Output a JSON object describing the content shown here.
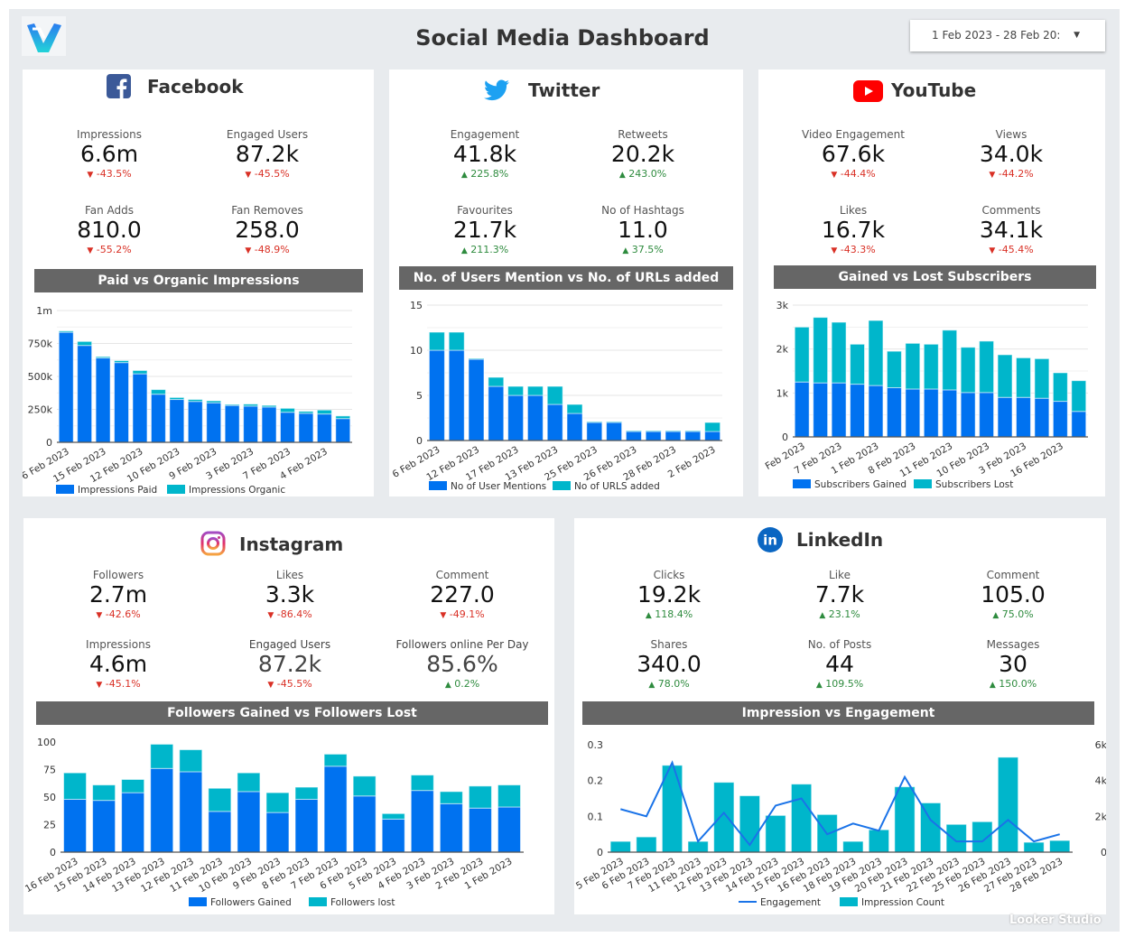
{
  "header": {
    "title": "Social Media Dashboard",
    "date_range": "1 Feb 2023 - 28 Feb 20:",
    "watermark": "Looker Studio"
  },
  "colors": {
    "primary": "#0072f0",
    "secondary": "#00b6cb",
    "down": "#d93025",
    "up": "#2e8b3e",
    "chart_header": "#666666"
  },
  "facebook": {
    "name": "Facebook",
    "icon": "facebook-icon",
    "kpis": [
      {
        "label": "Impressions",
        "value": "6.6m",
        "delta": "-43.5%",
        "trend": "down"
      },
      {
        "label": "Engaged Users",
        "value": "87.2k",
        "delta": "-45.5%",
        "trend": "down"
      },
      {
        "label": "Fan Adds",
        "value": "810.0",
        "delta": "-55.2%",
        "trend": "down"
      },
      {
        "label": "Fan Removes",
        "value": "258.0",
        "delta": "-48.9%",
        "trend": "down"
      }
    ],
    "chart_title": "Paid vs Organic Impressions"
  },
  "twitter": {
    "name": "Twitter",
    "icon": "twitter-bird-icon",
    "kpis": [
      {
        "label": "Engagement",
        "value": "41.8k",
        "delta": "225.8%",
        "trend": "up"
      },
      {
        "label": "Retweets",
        "value": "20.2k",
        "delta": "243.0%",
        "trend": "up"
      },
      {
        "label": "Favourites",
        "value": "21.7k",
        "delta": "211.3%",
        "trend": "up"
      },
      {
        "label": "No of Hashtags",
        "value": "11.0",
        "delta": "37.5%",
        "trend": "up"
      }
    ],
    "chart_title": "No. of Users Mention vs No. of URLs added"
  },
  "youtube": {
    "name": "YouTube",
    "icon": "youtube-play-icon",
    "kpis": [
      {
        "label": "Video Engagement",
        "value": "67.6k",
        "delta": "-44.4%",
        "trend": "down"
      },
      {
        "label": "Views",
        "value": "34.0k",
        "delta": "-44.2%",
        "trend": "down"
      },
      {
        "label": "Likes",
        "value": "16.7k",
        "delta": "-43.3%",
        "trend": "down"
      },
      {
        "label": "Comments",
        "value": "34.1k",
        "delta": "-45.4%",
        "trend": "down"
      }
    ],
    "chart_title": "Gained vs Lost Subscribers"
  },
  "instagram": {
    "name": "Instagram",
    "icon": "instagram-icon",
    "kpis": [
      {
        "label": "Followers",
        "value": "2.7m",
        "delta": "-42.6%",
        "trend": "down"
      },
      {
        "label": "Likes",
        "value": "3.3k",
        "delta": "-86.4%",
        "trend": "down"
      },
      {
        "label": "Comment",
        "value": "227.0",
        "delta": "-49.1%",
        "trend": "down"
      },
      {
        "label": "Impressions",
        "value": "4.6m",
        "delta": "-45.1%",
        "trend": "down"
      },
      {
        "label": "Engaged Users",
        "value": "87.2k",
        "delta": "-45.5%",
        "trend": "down"
      },
      {
        "label": "Followers online Per Day",
        "value": "85.6%",
        "delta": "0.2%",
        "trend": "up"
      }
    ],
    "chart_title": "Followers Gained vs Followers Lost"
  },
  "linkedin": {
    "name": "LinkedIn",
    "icon": "linkedin-icon",
    "kpis": [
      {
        "label": "Clicks",
        "value": "19.2k",
        "delta": "118.4%",
        "trend": "up"
      },
      {
        "label": "Like",
        "value": "7.7k",
        "delta": "23.1%",
        "trend": "up"
      },
      {
        "label": "Comment",
        "value": "105.0",
        "delta": "75.0%",
        "trend": "up"
      },
      {
        "label": "Shares",
        "value": "340.0",
        "delta": "78.0%",
        "trend": "up"
      },
      {
        "label": "No. of Posts",
        "value": "44",
        "delta": "109.5%",
        "trend": "up"
      },
      {
        "label": "Messages",
        "value": "30",
        "delta": "150.0%",
        "trend": "up"
      }
    ],
    "chart_title": "Impression vs Engagement"
  },
  "chart_data": [
    {
      "type": "bar",
      "stacked": true,
      "title": "Paid vs Organic Impressions",
      "grid": true,
      "legend": "bottom",
      "categories": [
        "6 Feb 2023",
        "",
        "15 Feb 2023",
        "",
        "12 Feb 2023",
        "",
        "10 Feb 2023",
        "",
        "9 Feb 2023",
        "",
        "3 Feb 2023",
        "",
        "7 Feb 2023",
        "",
        "4 Feb 2023",
        ""
      ],
      "y_axis": {
        "min": 0,
        "max": 1000000,
        "ticks": [
          {
            "value": 0,
            "label": "0"
          },
          {
            "value": 250000,
            "label": "250k"
          },
          {
            "value": 500000,
            "label": "500k"
          },
          {
            "value": 750000,
            "label": "750k"
          },
          {
            "value": 1000000,
            "label": "1m"
          }
        ]
      },
      "series": [
        {
          "name": "Impressions Paid",
          "type": "bar",
          "color": "#0072f0",
          "values": [
            835000,
            735000,
            640000,
            605000,
            520000,
            365000,
            325000,
            310000,
            300000,
            280000,
            275000,
            268000,
            228000,
            220000,
            215000,
            180000
          ]
        },
        {
          "name": "Impressions Organic",
          "type": "bar",
          "color": "#00b6cb",
          "values": [
            10000,
            30000,
            10000,
            15000,
            25000,
            35000,
            15000,
            15000,
            15000,
            8000,
            15000,
            12000,
            30000,
            15000,
            30000,
            20000
          ]
        }
      ]
    },
    {
      "type": "bar",
      "stacked": true,
      "title": "No. of Users Mention vs No. of URLs added",
      "grid": true,
      "legend": "bottom",
      "categories": [
        "6 Feb 2023",
        "",
        "12 Feb 2023",
        "",
        "17 Feb 2023",
        "",
        "13 Feb 2023",
        "",
        "25 Feb 2023",
        "",
        "26 Feb 2023",
        "",
        "28 Feb 2023",
        "",
        "2 Feb 2023"
      ],
      "y_axis": {
        "min": 0,
        "max": 15,
        "ticks": [
          {
            "value": 0,
            "label": "0"
          },
          {
            "value": 5,
            "label": "5"
          },
          {
            "value": 10,
            "label": "10"
          },
          {
            "value": 15,
            "label": "15"
          }
        ]
      },
      "series": [
        {
          "name": "No of User Mentions",
          "type": "bar",
          "color": "#0072f0",
          "values": [
            10,
            10,
            9,
            6,
            5,
            5,
            4,
            3,
            2,
            2,
            1,
            1,
            1,
            1,
            1
          ]
        },
        {
          "name": "No of URLS added",
          "type": "bar",
          "color": "#00b6cb",
          "values": [
            2,
            2,
            0.1,
            1,
            1,
            1,
            2,
            1,
            0.1,
            0.1,
            0.1,
            0.1,
            0.1,
            0.1,
            1
          ]
        }
      ]
    },
    {
      "type": "bar",
      "stacked": true,
      "title": "Gained vs Lost Subscribers",
      "grid": true,
      "legend": "bottom",
      "categories": [
        "Feb 2023",
        "",
        "7 Feb 2023",
        "",
        "1 Feb 2023",
        "",
        "8 Feb 2023",
        "",
        "11 Feb 2023",
        "",
        "10 Feb 2023",
        "",
        "3 Feb 2023",
        "",
        "16 Feb 2023",
        ""
      ],
      "y_axis": {
        "min": 0,
        "max": 3000,
        "ticks": [
          {
            "value": 0,
            "label": "0"
          },
          {
            "value": 1000,
            "label": "1k"
          },
          {
            "value": 2000,
            "label": "2k"
          },
          {
            "value": 3000,
            "label": "3k"
          }
        ]
      },
      "series": [
        {
          "name": "Subscribers Gained",
          "type": "bar",
          "color": "#0072f0",
          "values": [
            1250,
            1230,
            1230,
            1200,
            1170,
            1120,
            1090,
            1090,
            1070,
            1010,
            1010,
            900,
            900,
            880,
            810,
            580
          ]
        },
        {
          "name": "Subscribers Lost",
          "type": "bar",
          "color": "#00b6cb",
          "values": [
            1250,
            1490,
            1380,
            910,
            1480,
            830,
            1040,
            1020,
            1360,
            1030,
            1170,
            970,
            900,
            900,
            650,
            700
          ]
        }
      ]
    },
    {
      "type": "bar",
      "stacked": true,
      "title": "Followers Gained vs Followers Lost",
      "grid": false,
      "legend": "bottom",
      "categories": [
        "16 Feb 2023",
        "15 Feb 2023",
        "14 Feb 2023",
        "13 Feb 2023",
        "12 Feb 2023",
        "11 Feb 2023",
        "10 Feb 2023",
        "9 Feb 2023",
        "8 Feb 2023",
        "7 Feb 2023",
        "6 Feb 2023",
        "5 Feb 2023",
        "4 Feb 2023",
        "3 Feb 2023",
        "2 Feb 2023",
        "1 Feb 2023"
      ],
      "y_axis": {
        "min": 0,
        "max": 100,
        "ticks": [
          {
            "value": 0,
            "label": "0"
          },
          {
            "value": 25,
            "label": "25"
          },
          {
            "value": 50,
            "label": "50"
          },
          {
            "value": 75,
            "label": "75"
          },
          {
            "value": 100,
            "label": "100"
          }
        ]
      },
      "series": [
        {
          "name": "Followers Gained",
          "type": "bar",
          "color": "#0072f0",
          "values": [
            48,
            47,
            54,
            76,
            73,
            37,
            55,
            36,
            48,
            78,
            51,
            30,
            56,
            44,
            40,
            41
          ]
        },
        {
          "name": "Followers lost",
          "type": "bar",
          "color": "#00b6cb",
          "values": [
            24,
            14,
            12,
            22,
            20,
            21,
            17,
            18,
            11,
            11,
            18,
            5,
            14,
            11,
            20,
            20
          ]
        }
      ]
    },
    {
      "type": "combo",
      "title": "Impression vs Engagement",
      "grid": false,
      "legend": "bottom",
      "categories": [
        "5 Feb 2023",
        "6 Feb 2023",
        "7 Feb 2023",
        "11 Feb 2023",
        "12 Feb 2023",
        "13 Feb 2023",
        "14 Feb 2023",
        "15 Feb 2023",
        "16 Feb 2023",
        "18 Feb 2023",
        "19 Feb 2023",
        "20 Feb 2023",
        "21 Feb 2023",
        "22 Feb 2023",
        "25 Feb 2023",
        "26 Feb 2023",
        "27 Feb 2023",
        "28 Feb 2023"
      ],
      "y_axis": {
        "min": 0,
        "max": 0.3,
        "ticks": [
          {
            "value": 0,
            "label": "0"
          },
          {
            "value": 0.1,
            "label": "0.1"
          },
          {
            "value": 0.2,
            "label": "0.2"
          },
          {
            "value": 0.3,
            "label": "0.3"
          }
        ]
      },
      "y2_axis": {
        "min": 0,
        "max": 6000,
        "ticks": [
          {
            "value": 0,
            "label": "0"
          },
          {
            "value": 2000,
            "label": "2k"
          },
          {
            "value": 4000,
            "label": "4k"
          },
          {
            "value": 6000,
            "label": "6k"
          }
        ]
      },
      "series": [
        {
          "name": "Engagement",
          "type": "line",
          "axis": "left",
          "color": "#1a73e8",
          "values": [
            0.12,
            0.1,
            0.25,
            0.03,
            0.11,
            0.02,
            0.13,
            0.15,
            0.05,
            0.08,
            0.06,
            0.21,
            0.09,
            0.03,
            0.03,
            0.09,
            0.03,
            0.05
          ]
        },
        {
          "name": "Impression Count",
          "type": "bar",
          "axis": "right",
          "color": "#00b6cb",
          "values": [
            600,
            850,
            4850,
            600,
            3900,
            3150,
            2050,
            3800,
            2100,
            600,
            1250,
            3650,
            2750,
            1550,
            1700,
            5300,
            550,
            650
          ]
        }
      ]
    }
  ]
}
